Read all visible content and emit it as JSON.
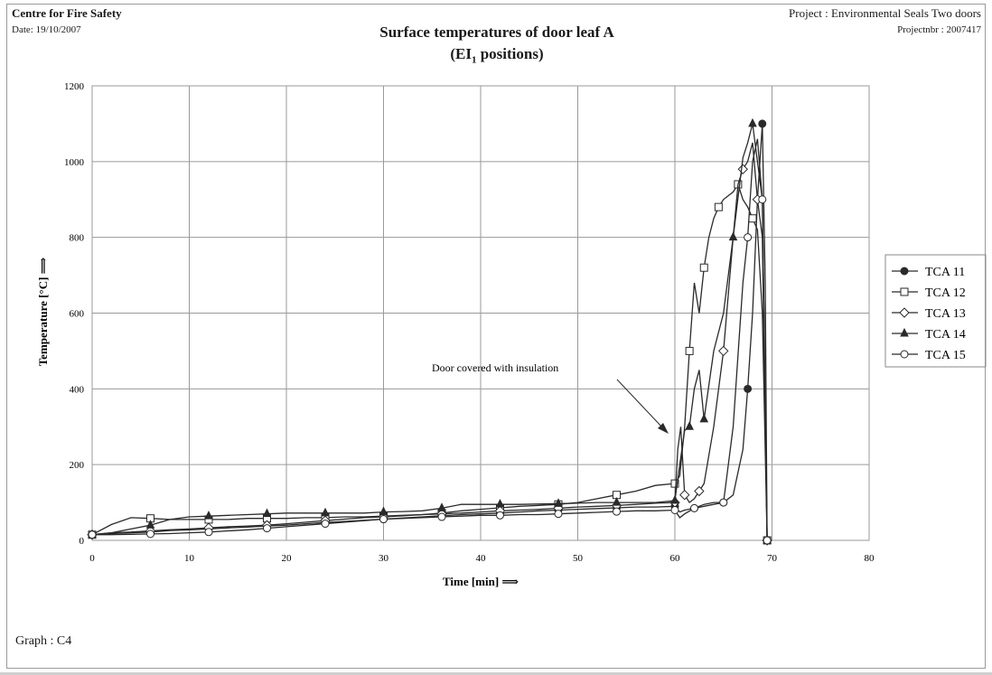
{
  "header": {
    "org": "Centre for Fire Safety",
    "date": "Date: 19/10/2007",
    "project": "Project : Environmental Seals Two doors",
    "project_nbr": "Projectnbr : 2007417"
  },
  "chart_title_line1": "Surface temperatures of door leaf A",
  "chart_title_line2_main": "(EI",
  "chart_title_line2_sub": "1",
  "chart_title_line2_end": " positions)",
  "graph_label": "Graph : C4",
  "colors": {
    "line": "#2a2a2a",
    "grid": "#9a9a9a",
    "frame": "#9a9a9a"
  },
  "chart_data": {
    "type": "line",
    "title": "Surface temperatures of door leaf A (EI1 positions)",
    "xlabel": "Time [min] ⟹",
    "ylabel": "Temperature [°C] ⟹",
    "xlim": [
      0,
      80
    ],
    "ylim": [
      0,
      1200
    ],
    "x_ticks": [
      0,
      10,
      20,
      30,
      40,
      50,
      60,
      70,
      80
    ],
    "y_ticks": [
      0,
      200,
      400,
      600,
      800,
      1000,
      1200
    ],
    "grid": true,
    "legend_position": "right",
    "annotation": {
      "text": "Door covered with insulation",
      "arrow_to": [
        60.4,
        280
      ]
    },
    "series": [
      {
        "name": "TCA 11",
        "marker": "circle-filled",
        "x": [
          0,
          2,
          4,
          6,
          8,
          10,
          12,
          14,
          16,
          18,
          20,
          22,
          24,
          26,
          28,
          30,
          32,
          34,
          36,
          38,
          40,
          42,
          44,
          46,
          48,
          50,
          52,
          54,
          56,
          58,
          60,
          60.5,
          61,
          62,
          63,
          64,
          65,
          66,
          67,
          67.5,
          68,
          68.5,
          69,
          69.3,
          69.5
        ],
        "values": [
          15,
          18,
          20,
          22,
          26,
          28,
          30,
          33,
          35,
          38,
          40,
          44,
          47,
          50,
          53,
          56,
          59,
          62,
          65,
          68,
          70,
          72,
          75,
          78,
          80,
          82,
          84,
          86,
          88,
          88,
          90,
          75,
          80,
          85,
          90,
          95,
          100,
          120,
          240,
          400,
          600,
          900,
          1100,
          680,
          0
        ]
      },
      {
        "name": "TCA 12",
        "marker": "square-open",
        "x": [
          0,
          2,
          4,
          6,
          8,
          10,
          12,
          14,
          16,
          18,
          20,
          22,
          24,
          26,
          28,
          30,
          32,
          34,
          36,
          38,
          40,
          42,
          44,
          46,
          48,
          50,
          52,
          54,
          56,
          58,
          60,
          60.5,
          61,
          61.5,
          62,
          62.5,
          63,
          63.5,
          64,
          64.5,
          65,
          66,
          66.5,
          67,
          67.5,
          68,
          68.5,
          69,
          69.5
        ],
        "values": [
          15,
          42,
          60,
          58,
          55,
          55,
          55,
          55,
          58,
          58,
          58,
          60,
          60,
          62,
          62,
          64,
          66,
          68,
          72,
          78,
          82,
          86,
          90,
          92,
          95,
          100,
          110,
          120,
          130,
          145,
          150,
          170,
          300,
          500,
          680,
          600,
          720,
          800,
          850,
          880,
          900,
          920,
          940,
          900,
          880,
          850,
          820,
          600,
          0
        ]
      },
      {
        "name": "TCA 13",
        "marker": "diamond-open",
        "x": [
          0,
          2,
          4,
          6,
          8,
          10,
          12,
          14,
          16,
          18,
          20,
          22,
          24,
          26,
          28,
          30,
          32,
          34,
          36,
          38,
          40,
          42,
          44,
          46,
          48,
          50,
          52,
          54,
          56,
          58,
          60,
          60.3,
          60.6,
          61,
          61.5,
          62,
          62.5,
          63,
          64,
          65,
          66,
          66.5,
          67,
          67.5,
          68,
          68.5,
          69,
          69.5
        ],
        "values": [
          15,
          20,
          22,
          25,
          28,
          30,
          33,
          36,
          38,
          40,
          44,
          48,
          52,
          56,
          60,
          62,
          65,
          68,
          70,
          72,
          75,
          78,
          80,
          82,
          85,
          88,
          90,
          92,
          95,
          98,
          100,
          240,
          300,
          120,
          100,
          110,
          130,
          150,
          300,
          500,
          800,
          940,
          980,
          1000,
          1050,
          900,
          800,
          0
        ]
      },
      {
        "name": "TCA 14",
        "marker": "triangle-filled",
        "x": [
          0,
          2,
          4,
          6,
          8,
          10,
          12,
          14,
          16,
          18,
          20,
          22,
          24,
          26,
          28,
          30,
          32,
          34,
          36,
          38,
          40,
          42,
          44,
          46,
          48,
          50,
          52,
          54,
          56,
          58,
          60,
          60.5,
          61,
          61.5,
          62,
          62.5,
          63,
          64,
          65,
          66,
          67,
          67.5,
          68,
          68.5,
          69,
          69.5
        ],
        "values": [
          15,
          20,
          30,
          40,
          55,
          62,
          64,
          66,
          68,
          70,
          72,
          72,
          72,
          72,
          72,
          75,
          76,
          78,
          85,
          95,
          95,
          95,
          95,
          96,
          97,
          98,
          100,
          100,
          100,
          100,
          105,
          200,
          290,
          300,
          400,
          450,
          320,
          500,
          600,
          800,
          1010,
          1050,
          1100,
          1000,
          900,
          0
        ]
      },
      {
        "name": "TCA 15",
        "marker": "circle-open",
        "x": [
          0,
          2,
          4,
          6,
          8,
          10,
          12,
          14,
          16,
          18,
          20,
          22,
          24,
          26,
          28,
          30,
          32,
          34,
          36,
          38,
          40,
          42,
          44,
          46,
          48,
          50,
          52,
          54,
          56,
          58,
          60,
          60.5,
          61,
          62,
          63,
          64,
          65,
          66,
          67,
          67.5,
          68,
          68.5,
          69,
          69.5
        ],
        "values": [
          15,
          15,
          16,
          17,
          18,
          20,
          22,
          25,
          28,
          32,
          36,
          40,
          44,
          48,
          52,
          56,
          58,
          60,
          62,
          64,
          66,
          66,
          68,
          68,
          70,
          72,
          74,
          76,
          78,
          78,
          80,
          60,
          70,
          85,
          95,
          100,
          100,
          300,
          680,
          800,
          1000,
          1060,
          900,
          0
        ]
      }
    ]
  }
}
